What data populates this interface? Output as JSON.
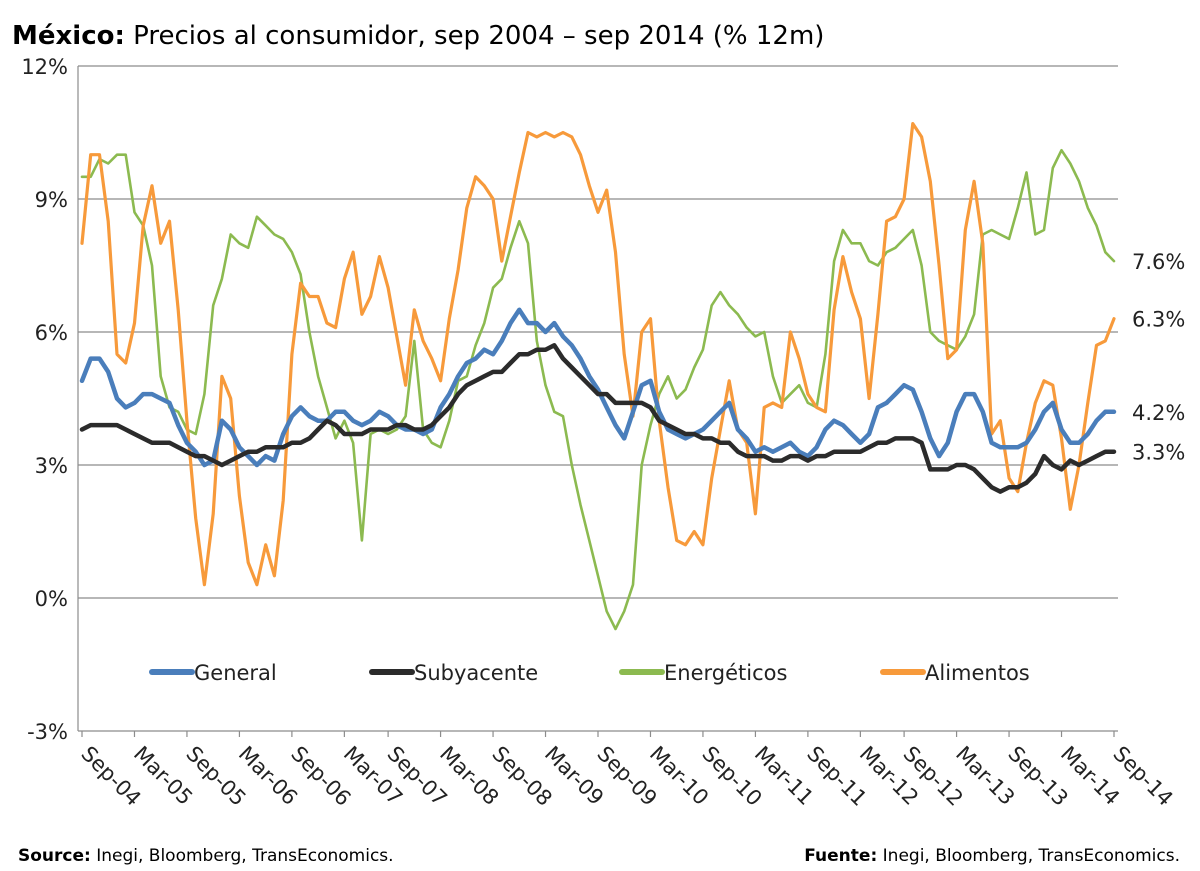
{
  "title": {
    "bold": "México:",
    "rest": " Precios al consumidor, sep 2004 – sep 2014 (% 12m)"
  },
  "sources": {
    "left_bold": "Source:",
    "left_text": " Inegi, Bloomberg, TransEconomics.",
    "right_bold": "Fuente:",
    "right_text": " Inegi, Bloomberg, TransEconomics."
  },
  "chart_data": {
    "type": "line",
    "x_tick_labels": [
      "Sep-04",
      "Mar-05",
      "Sep-05",
      "Mar-06",
      "Sep-06",
      "Mar-07",
      "Sep-07",
      "Mar-08",
      "Sep-08",
      "Mar-09",
      "Sep-09",
      "Mar-10",
      "Sep-10",
      "Mar-11",
      "Sep-11",
      "Mar-12",
      "Sep-12",
      "Mar-13",
      "Sep-13",
      "Mar-14",
      "Sep-14"
    ],
    "x_start": "Sep-04",
    "x_end": "Sep-14",
    "y_tick_labels": [
      "12%",
      "9%",
      "6%",
      "3%",
      "0%",
      "-3%"
    ],
    "y_ticks": [
      12,
      9,
      6,
      3,
      0,
      -3
    ],
    "ylim": [
      -3,
      12
    ],
    "grid": "horizontal",
    "legend_position": "bottom-inside",
    "series": [
      {
        "name": "General",
        "color": "#4a7ebb",
        "end_label": "4.2%",
        "values": [
          4.9,
          5.4,
          5.4,
          5.1,
          4.5,
          4.3,
          4.4,
          4.6,
          4.6,
          4.5,
          4.4,
          3.9,
          3.5,
          3.3,
          3.0,
          3.1,
          4.0,
          3.8,
          3.4,
          3.2,
          3.0,
          3.2,
          3.1,
          3.7,
          4.1,
          4.3,
          4.1,
          4.0,
          4.0,
          4.2,
          4.2,
          4.0,
          3.9,
          4.0,
          4.2,
          4.1,
          3.9,
          3.8,
          3.8,
          3.7,
          3.8,
          4.3,
          4.6,
          5.0,
          5.3,
          5.4,
          5.6,
          5.5,
          5.8,
          6.2,
          6.5,
          6.2,
          6.2,
          6.0,
          6.2,
          5.9,
          5.7,
          5.4,
          5.0,
          4.7,
          4.3,
          3.9,
          3.6,
          4.2,
          4.8,
          4.9,
          4.2,
          3.8,
          3.7,
          3.6,
          3.7,
          3.8,
          4.0,
          4.2,
          4.4,
          3.8,
          3.6,
          3.3,
          3.4,
          3.3,
          3.4,
          3.5,
          3.3,
          3.2,
          3.4,
          3.8,
          4.0,
          3.9,
          3.7,
          3.5,
          3.7,
          4.3,
          4.4,
          4.6,
          4.8,
          4.7,
          4.2,
          3.6,
          3.2,
          3.5,
          4.2,
          4.6,
          4.6,
          4.2,
          3.5,
          3.4,
          3.4,
          3.4,
          3.5,
          3.8,
          4.2,
          4.4,
          3.8,
          3.5,
          3.5,
          3.7,
          4.0,
          4.2,
          4.2
        ]
      },
      {
        "name": "Subyacente",
        "color": "#2b2b2b",
        "end_label": "3.3%",
        "values": [
          3.8,
          3.9,
          3.9,
          3.9,
          3.9,
          3.8,
          3.7,
          3.6,
          3.5,
          3.5,
          3.5,
          3.4,
          3.3,
          3.2,
          3.2,
          3.1,
          3.0,
          3.1,
          3.2,
          3.3,
          3.3,
          3.4,
          3.4,
          3.4,
          3.5,
          3.5,
          3.6,
          3.8,
          4.0,
          3.9,
          3.7,
          3.7,
          3.7,
          3.8,
          3.8,
          3.8,
          3.9,
          3.9,
          3.8,
          3.8,
          3.9,
          4.1,
          4.3,
          4.6,
          4.8,
          4.9,
          5.0,
          5.1,
          5.1,
          5.3,
          5.5,
          5.5,
          5.6,
          5.6,
          5.7,
          5.4,
          5.2,
          5.0,
          4.8,
          4.6,
          4.6,
          4.4,
          4.4,
          4.4,
          4.4,
          4.3,
          4.0,
          3.9,
          3.8,
          3.7,
          3.7,
          3.6,
          3.6,
          3.5,
          3.5,
          3.3,
          3.2,
          3.2,
          3.2,
          3.1,
          3.1,
          3.2,
          3.2,
          3.1,
          3.2,
          3.2,
          3.3,
          3.3,
          3.3,
          3.3,
          3.4,
          3.5,
          3.5,
          3.6,
          3.6,
          3.6,
          3.5,
          2.9,
          2.9,
          2.9,
          3.0,
          3.0,
          2.9,
          2.7,
          2.5,
          2.4,
          2.5,
          2.5,
          2.6,
          2.8,
          3.2,
          3.0,
          2.9,
          3.1,
          3.0,
          3.1,
          3.2,
          3.3,
          3.3
        ]
      },
      {
        "name": "Energéticos",
        "color": "#8cba50",
        "end_label": "7.6%",
        "values": [
          9.5,
          9.5,
          9.9,
          9.8,
          10.0,
          10.0,
          8.7,
          8.4,
          7.5,
          5.0,
          4.3,
          4.2,
          3.8,
          3.7,
          4.6,
          6.6,
          7.2,
          8.2,
          8.0,
          7.9,
          8.6,
          8.4,
          8.2,
          8.1,
          7.8,
          7.3,
          6.0,
          5.0,
          4.3,
          3.6,
          4.0,
          3.5,
          1.3,
          3.7,
          3.8,
          3.7,
          3.8,
          4.1,
          5.8,
          3.8,
          3.5,
          3.4,
          4.0,
          4.9,
          5.0,
          5.7,
          6.2,
          7.0,
          7.2,
          7.9,
          8.5,
          8.0,
          5.8,
          4.8,
          4.2,
          4.1,
          3.0,
          2.1,
          1.3,
          0.5,
          -0.3,
          -0.7,
          -0.3,
          0.3,
          3.0,
          3.9,
          4.6,
          5.0,
          4.5,
          4.7,
          5.2,
          5.6,
          6.6,
          6.9,
          6.6,
          6.4,
          6.1,
          5.9,
          6.0,
          5.0,
          4.4,
          4.6,
          4.8,
          4.4,
          4.3,
          5.5,
          7.6,
          8.3,
          8.0,
          8.0,
          7.6,
          7.5,
          7.8,
          7.9,
          8.1,
          8.3,
          7.5,
          6.0,
          5.8,
          5.7,
          5.6,
          5.9,
          6.4,
          8.2,
          8.3,
          8.2,
          8.1,
          8.8,
          9.6,
          8.2,
          8.3,
          9.7,
          10.1,
          9.8,
          9.4,
          8.8,
          8.4,
          7.8,
          7.6
        ]
      },
      {
        "name": "Alimentos",
        "color": "#f79a3b",
        "end_label": "6.3%",
        "values": [
          8.0,
          10.0,
          10.0,
          8.5,
          5.5,
          5.3,
          6.2,
          8.4,
          9.3,
          8.0,
          8.5,
          6.5,
          4.0,
          1.8,
          0.3,
          1.9,
          5.0,
          4.5,
          2.3,
          0.8,
          0.3,
          1.2,
          0.5,
          2.2,
          5.5,
          7.1,
          6.8,
          6.8,
          6.2,
          6.1,
          7.2,
          7.8,
          6.4,
          6.8,
          7.7,
          7.0,
          5.9,
          4.8,
          6.5,
          5.8,
          5.4,
          4.9,
          6.3,
          7.4,
          8.8,
          9.5,
          9.3,
          9.0,
          7.6,
          8.6,
          9.6,
          10.5,
          10.4,
          10.5,
          10.4,
          10.5,
          10.4,
          10.0,
          9.3,
          8.7,
          9.2,
          7.8,
          5.5,
          4.1,
          6.0,
          6.3,
          4.0,
          2.5,
          1.3,
          1.2,
          1.5,
          1.2,
          2.7,
          3.8,
          4.9,
          3.8,
          3.5,
          1.9,
          4.3,
          4.4,
          4.3,
          6.0,
          5.4,
          4.6,
          4.3,
          4.2,
          6.5,
          7.7,
          6.9,
          6.3,
          4.5,
          6.4,
          8.5,
          8.6,
          9.0,
          10.7,
          10.4,
          9.4,
          7.5,
          5.4,
          5.6,
          8.3,
          9.4,
          8.0,
          3.7,
          4.0,
          2.7,
          2.4,
          3.5,
          4.4,
          4.9,
          4.8,
          3.6,
          2.0,
          3.0,
          4.4,
          5.7,
          5.8,
          6.3
        ]
      }
    ]
  }
}
